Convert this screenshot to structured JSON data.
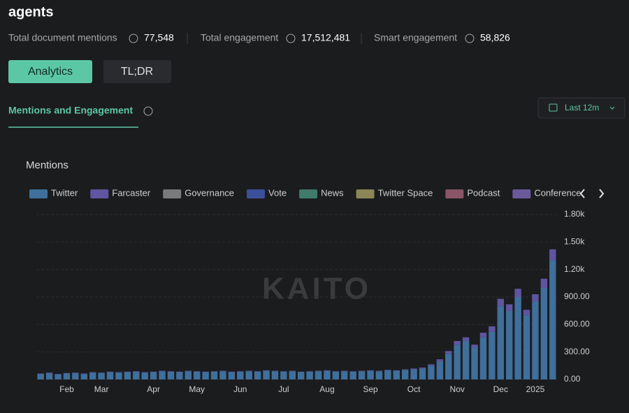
{
  "header": {
    "title": "agents",
    "stats": [
      {
        "label": "Total document mentions",
        "value": "77,548"
      },
      {
        "label": "Total engagement",
        "value": "17,512,481"
      },
      {
        "label": "Smart engagement",
        "value": "58,826"
      }
    ]
  },
  "buttons": [
    "Analytics",
    "TL;DR"
  ],
  "tab": "Mentions and Engagement",
  "date_range": "Last 12m",
  "chart_data": {
    "type": "bar",
    "stacked": true,
    "title": "Mentions",
    "watermark": "KAITO",
    "grid": true,
    "categories": [
      null,
      null,
      null,
      "Feb",
      null,
      null,
      null,
      "Mar",
      null,
      null,
      null,
      null,
      null,
      "Apr",
      null,
      null,
      null,
      null,
      "May",
      null,
      null,
      null,
      null,
      "Jun",
      null,
      null,
      null,
      null,
      "Jul",
      null,
      null,
      null,
      null,
      "Aug",
      null,
      null,
      null,
      null,
      "Sep",
      null,
      null,
      null,
      null,
      "Oct",
      null,
      null,
      null,
      null,
      "Nov",
      null,
      null,
      null,
      null,
      "Dec",
      null,
      null,
      null,
      "2025",
      null,
      null
    ],
    "ylim": [
      0,
      1800
    ],
    "yticks": [
      {
        "value": 0,
        "label": "0.00"
      },
      {
        "value": 300,
        "label": "300.00"
      },
      {
        "value": 600,
        "label": "600.00"
      },
      {
        "value": 900,
        "label": "900.00"
      },
      {
        "value": 1200,
        "label": "1.20k"
      },
      {
        "value": 1500,
        "label": "1.50k"
      },
      {
        "value": 1800,
        "label": "1.80k"
      }
    ],
    "series": [
      {
        "name": "Twitter",
        "color": "#3f6f9a",
        "values": [
          60,
          70,
          55,
          65,
          70,
          60,
          75,
          70,
          80,
          75,
          80,
          85,
          75,
          80,
          90,
          85,
          80,
          90,
          85,
          80,
          85,
          90,
          80,
          85,
          90,
          85,
          95,
          90,
          85,
          90,
          80,
          85,
          90,
          95,
          85,
          90,
          85,
          90,
          95,
          90,
          100,
          95,
          105,
          110,
          120,
          150,
          200,
          280,
          380,
          420,
          350,
          460,
          520,
          800,
          750,
          900,
          700,
          850,
          1000,
          1300
        ]
      },
      {
        "name": "Farcaster",
        "color": "#5f55a0",
        "values": [
          5,
          5,
          5,
          5,
          5,
          5,
          5,
          5,
          5,
          5,
          5,
          5,
          5,
          5,
          5,
          5,
          5,
          5,
          5,
          5,
          5,
          5,
          5,
          5,
          5,
          5,
          5,
          5,
          5,
          5,
          5,
          5,
          5,
          5,
          5,
          5,
          5,
          5,
          5,
          5,
          5,
          5,
          5,
          10,
          10,
          15,
          20,
          30,
          40,
          40,
          30,
          50,
          60,
          80,
          70,
          90,
          60,
          80,
          100,
          120
        ]
      },
      {
        "name": "Governance",
        "color": "#7a7a7a",
        "values": [
          0,
          0,
          0,
          0,
          0,
          0,
          0,
          0,
          0,
          0,
          0,
          0,
          0,
          0,
          0,
          0,
          0,
          0,
          0,
          0,
          0,
          0,
          0,
          0,
          0,
          0,
          0,
          0,
          0,
          0,
          0,
          0,
          0,
          0,
          0,
          0,
          0,
          0,
          0,
          0,
          0,
          0,
          0,
          0,
          0,
          0,
          0,
          0,
          0,
          0,
          0,
          0,
          0,
          0,
          0,
          0,
          0,
          0,
          0,
          0
        ]
      },
      {
        "name": "Vote",
        "color": "#3b4f9a",
        "values": [
          0,
          0,
          0,
          0,
          0,
          0,
          0,
          0,
          0,
          0,
          0,
          0,
          0,
          0,
          0,
          0,
          0,
          0,
          0,
          0,
          0,
          0,
          0,
          0,
          0,
          0,
          0,
          0,
          0,
          0,
          0,
          0,
          0,
          0,
          0,
          0,
          0,
          0,
          0,
          0,
          0,
          0,
          0,
          0,
          0,
          0,
          0,
          0,
          0,
          0,
          0,
          0,
          0,
          0,
          0,
          0,
          0,
          0,
          0,
          0
        ]
      },
      {
        "name": "News",
        "color": "#3f7a6a",
        "values": [
          0,
          0,
          0,
          0,
          0,
          0,
          0,
          0,
          0,
          0,
          0,
          0,
          0,
          0,
          0,
          0,
          0,
          0,
          0,
          0,
          0,
          0,
          0,
          0,
          0,
          0,
          0,
          0,
          0,
          0,
          0,
          0,
          0,
          0,
          0,
          0,
          0,
          0,
          0,
          0,
          0,
          0,
          0,
          0,
          0,
          0,
          0,
          0,
          0,
          0,
          0,
          0,
          0,
          0,
          0,
          0,
          0,
          0,
          0,
          0
        ]
      },
      {
        "name": "Twitter Space",
        "color": "#8a8656",
        "values": [
          0,
          0,
          0,
          0,
          0,
          0,
          0,
          0,
          0,
          0,
          0,
          0,
          0,
          0,
          0,
          0,
          0,
          0,
          0,
          0,
          0,
          0,
          0,
          0,
          0,
          0,
          0,
          0,
          0,
          0,
          0,
          0,
          0,
          0,
          0,
          0,
          0,
          0,
          0,
          0,
          0,
          0,
          0,
          0,
          0,
          0,
          0,
          0,
          0,
          0,
          0,
          0,
          0,
          0,
          0,
          0,
          0,
          0,
          0,
          0
        ]
      },
      {
        "name": "Podcast",
        "color": "#8a5566",
        "values": [
          0,
          0,
          0,
          0,
          0,
          0,
          0,
          0,
          0,
          0,
          0,
          0,
          0,
          0,
          0,
          0,
          0,
          0,
          0,
          0,
          0,
          0,
          0,
          0,
          0,
          0,
          0,
          0,
          0,
          0,
          0,
          0,
          0,
          0,
          0,
          0,
          0,
          0,
          0,
          0,
          0,
          0,
          0,
          0,
          0,
          0,
          0,
          0,
          0,
          0,
          0,
          0,
          0,
          0,
          0,
          0,
          0,
          0,
          0,
          0
        ]
      },
      {
        "name": "Conference",
        "color": "#6a5a9a",
        "values": [
          0,
          0,
          0,
          0,
          0,
          0,
          0,
          0,
          0,
          0,
          0,
          0,
          0,
          0,
          0,
          0,
          0,
          0,
          0,
          0,
          0,
          0,
          0,
          0,
          0,
          0,
          0,
          0,
          0,
          0,
          0,
          0,
          0,
          0,
          0,
          0,
          0,
          0,
          0,
          0,
          0,
          0,
          0,
          0,
          0,
          0,
          0,
          0,
          0,
          0,
          0,
          0,
          0,
          0,
          0,
          0,
          0,
          0,
          0,
          0
        ]
      }
    ]
  }
}
